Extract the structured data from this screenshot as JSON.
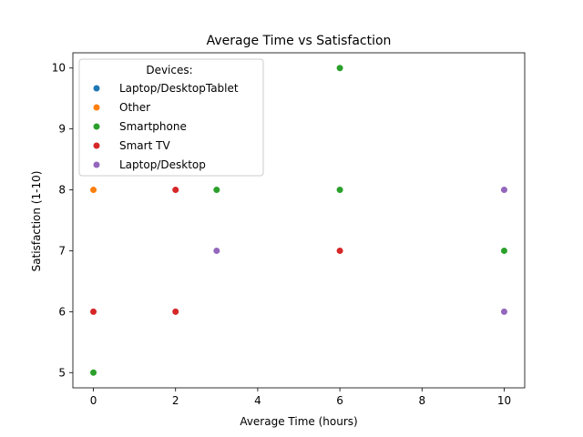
{
  "chart_data": {
    "type": "scatter",
    "title": "Average Time vs Satisfaction",
    "xlabel": "Average Time (hours)",
    "ylabel": "Satisfaction (1-10)",
    "xlim": [
      -0.5,
      10.5
    ],
    "ylim": [
      4.75,
      10.25
    ],
    "xticks": [
      0,
      2,
      4,
      6,
      8,
      10
    ],
    "yticks": [
      5,
      6,
      7,
      8,
      9,
      10
    ],
    "grid": false,
    "legend": {
      "title": "Devices:",
      "position": "upper-left"
    },
    "series": [
      {
        "name": "Laptop/DesktopTablet",
        "color": "#1f77b4",
        "points": []
      },
      {
        "name": "Other",
        "color": "#ff7f0e",
        "points": [
          [
            0,
            8
          ]
        ]
      },
      {
        "name": "Smartphone",
        "color": "#2ca02c",
        "points": [
          [
            0,
            5
          ],
          [
            3,
            8
          ],
          [
            6,
            10
          ],
          [
            6,
            8
          ],
          [
            10,
            7
          ]
        ]
      },
      {
        "name": "Smart TV",
        "color": "#d62728",
        "points": [
          [
            0,
            6
          ],
          [
            2,
            8
          ],
          [
            2,
            6
          ],
          [
            6,
            7
          ]
        ]
      },
      {
        "name": "Laptop/Desktop",
        "color": "#9467bd",
        "points": [
          [
            3,
            7
          ],
          [
            10,
            8
          ],
          [
            10,
            6
          ]
        ]
      }
    ]
  }
}
